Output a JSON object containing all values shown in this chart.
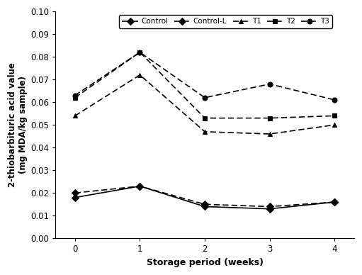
{
  "x": [
    0,
    1,
    2,
    3,
    4
  ],
  "series": {
    "Control": {
      "values": [
        0.018,
        0.023,
        0.014,
        0.013,
        0.016
      ],
      "marker": "D",
      "linestyle": "solid"
    },
    "Control-L": {
      "values": [
        0.02,
        0.023,
        0.015,
        0.014,
        0.016
      ],
      "marker": "D",
      "linestyle": "dashed"
    },
    "T1": {
      "values": [
        0.054,
        0.072,
        0.047,
        0.046,
        0.05
      ],
      "marker": "^",
      "linestyle": "dashed"
    },
    "T2": {
      "values": [
        0.062,
        0.082,
        0.053,
        0.053,
        0.054
      ],
      "marker": "s",
      "linestyle": "dashed"
    },
    "T3": {
      "values": [
        0.063,
        0.082,
        0.062,
        0.068,
        0.061
      ],
      "marker": "o",
      "linestyle": "dashed"
    }
  },
  "legend_order": [
    "Control",
    "Control-L",
    "T1",
    "T2",
    "T3"
  ],
  "xlabel": "Storage period (weeks)",
  "ylabel": "2-thiobarbituric acid value\n(mg MDA/kg sample)",
  "ylim": [
    0.0,
    0.1
  ],
  "yticks": [
    0.0,
    0.01,
    0.02,
    0.03,
    0.04,
    0.05,
    0.06,
    0.07,
    0.08,
    0.09,
    0.1
  ],
  "xticks": [
    0,
    1,
    2,
    3,
    4
  ],
  "color": "#000000",
  "background_color": "#ffffff",
  "linewidth": 1.2,
  "markersize": 5
}
